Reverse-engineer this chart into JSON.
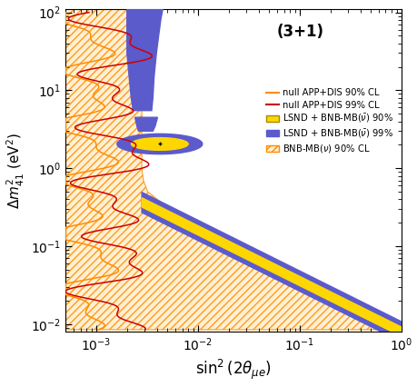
{
  "title": "(3+1)",
  "xlim": [
    0.0005,
    1.0
  ],
  "ylim": [
    0.008,
    110
  ],
  "colors": {
    "orange_line": "#FF8C00",
    "red_line": "#CC0000",
    "yellow_fill": "#FFD700",
    "blue_fill": "#5B5BCC",
    "hatch_face": "#FFEECC",
    "hatch_edge": "#FF8C00"
  }
}
